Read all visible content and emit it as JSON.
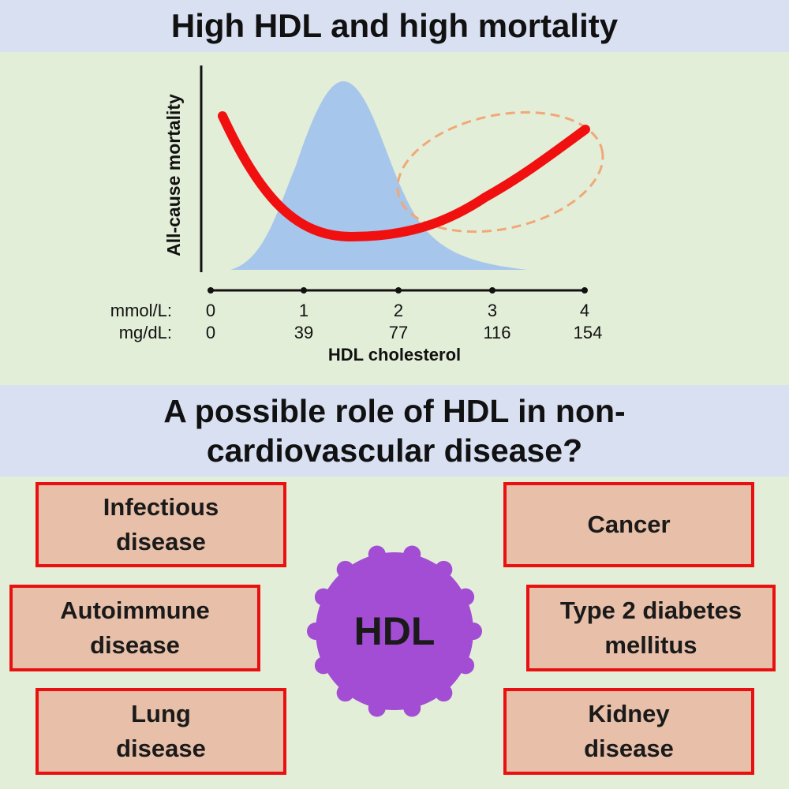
{
  "header": {
    "title": "High HDL and high mortality"
  },
  "chart": {
    "ylabel": "All-cause mortality",
    "xlabel": "HDL cholesterol",
    "unit_row_labels": [
      "mmol/L:",
      "mg/dL:"
    ],
    "ticks_mmol": [
      "0",
      "1",
      "2",
      "3",
      "4"
    ],
    "ticks_mgdl": [
      "0",
      "39",
      "77",
      "116",
      "154"
    ],
    "colors": {
      "curve": "#f01010",
      "distribution": "#a7c6eb",
      "highlight": "#f0a878"
    }
  },
  "question": {
    "line1": "A possible role of HDL in non-",
    "line2": "cardiovascular disease?"
  },
  "center": {
    "label": "HDL",
    "color": "#a24dd3"
  },
  "boxes": [
    {
      "id": "infectious",
      "line1": "Infectious",
      "line2": "disease"
    },
    {
      "id": "autoimmune",
      "line1": "Autoimmune",
      "line2": "disease"
    },
    {
      "id": "lung",
      "line1": "Lung",
      "line2": "disease"
    },
    {
      "id": "cancer",
      "line1": "Cancer",
      "line2": ""
    },
    {
      "id": "diabetes",
      "line1": "Type 2 diabetes",
      "line2": "mellitus"
    },
    {
      "id": "kidney",
      "line1": "Kidney",
      "line2": "disease"
    }
  ]
}
